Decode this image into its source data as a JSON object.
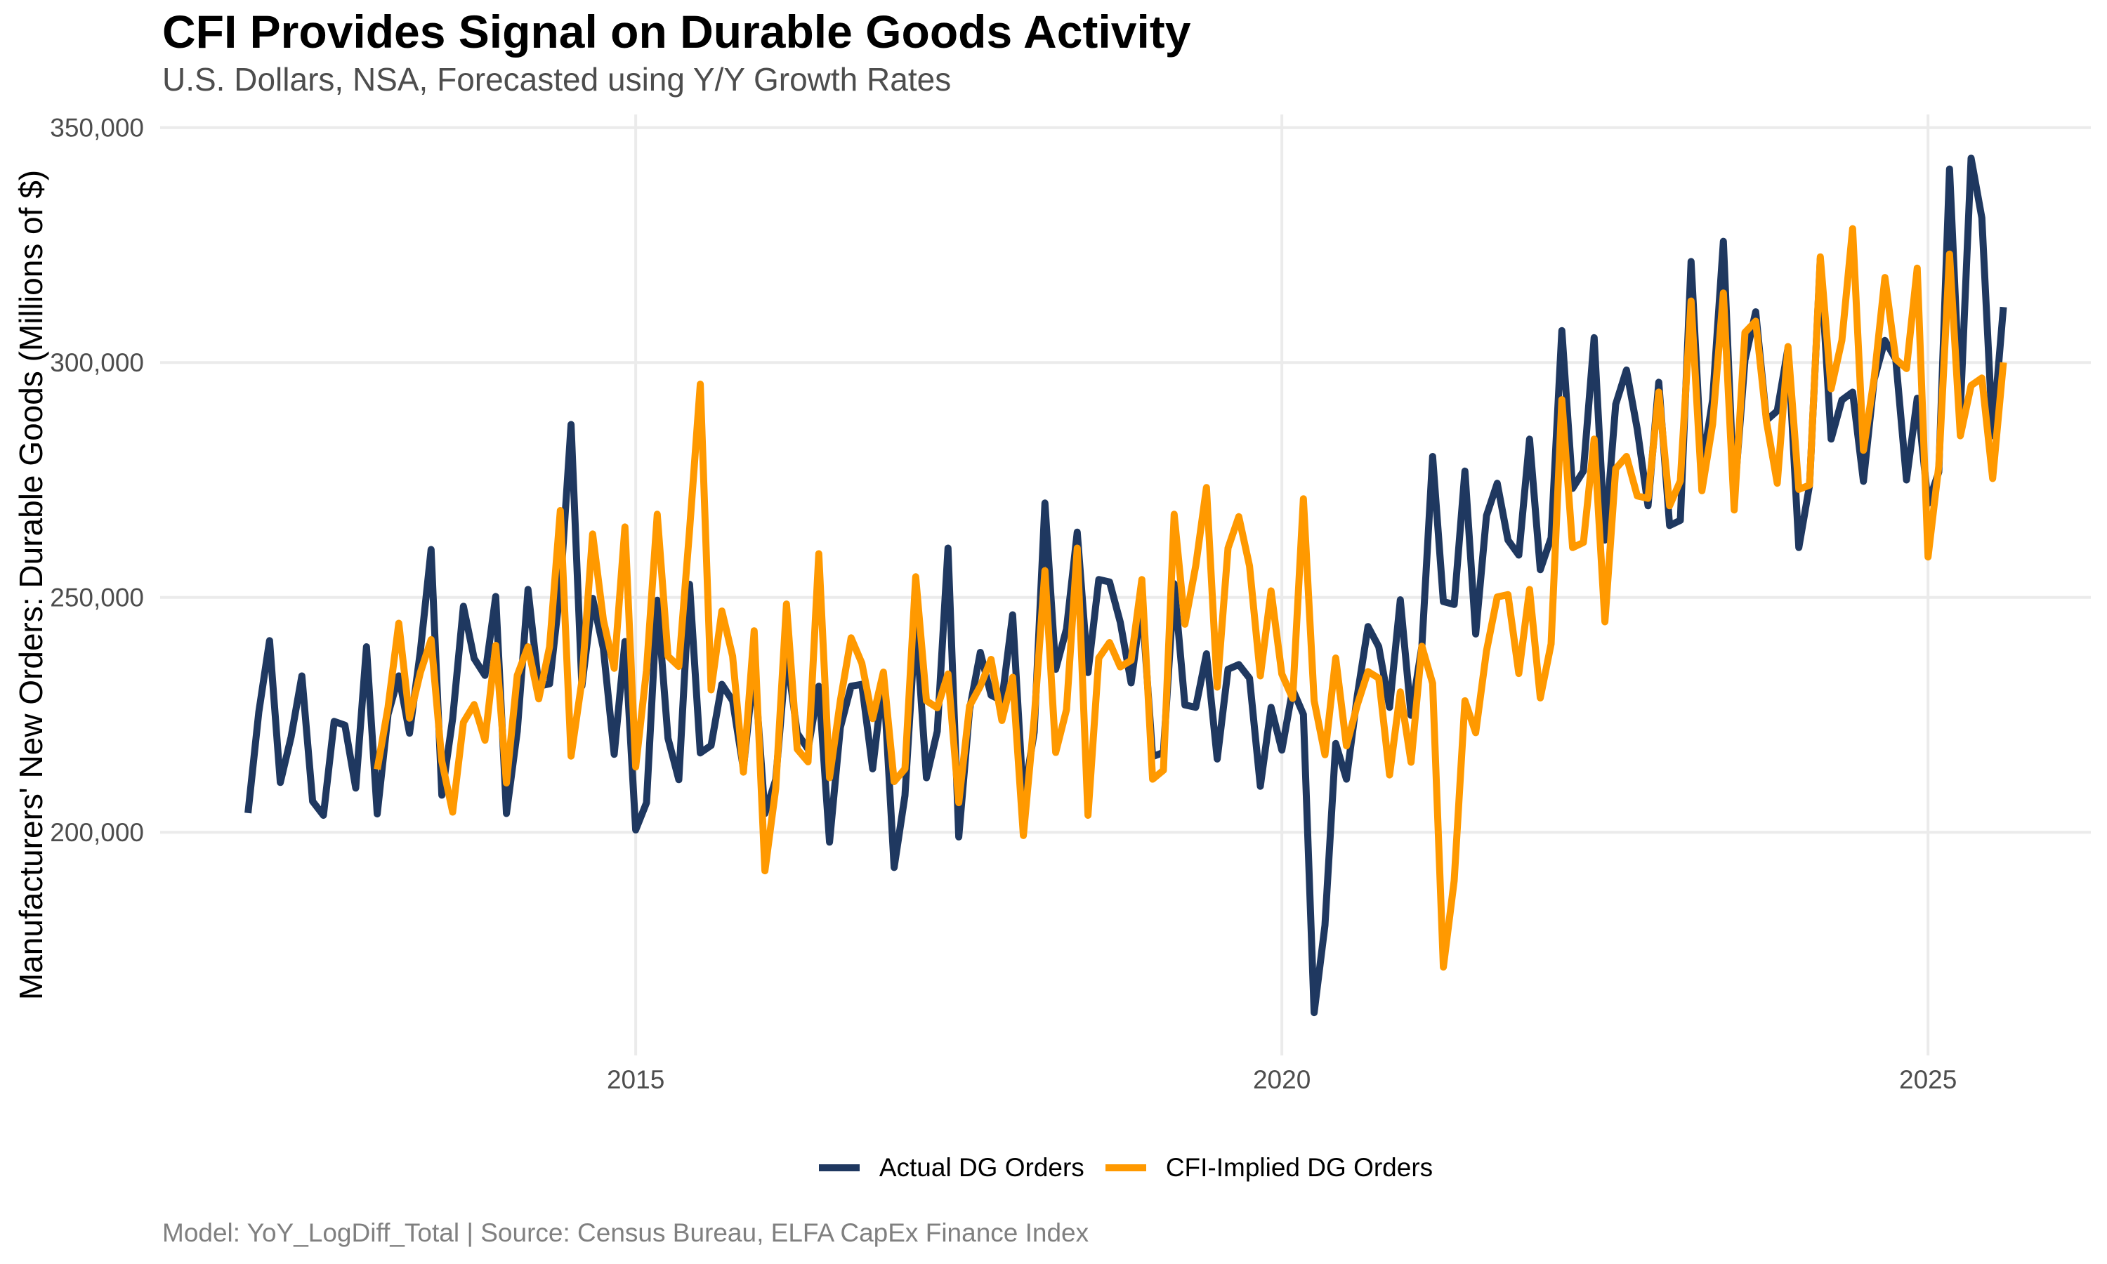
{
  "chart_data": {
    "type": "line",
    "title": "CFI Provides Signal on Durable Goods Activity",
    "subtitle": "U.S. Dollars, NSA, Forecasted using Y/Y Growth Rates",
    "caption": "Model: YoY_LogDiff_Total | Source: Census Bureau, ELFA CapEx Finance Index",
    "xlabel": "",
    "ylabel": "Manufacturers' New Orders: Durable Goods (Millions of $)",
    "x_frequency": "monthly",
    "xlim": [
      2011.32,
      2026.26
    ],
    "ylim": [
      152500,
      352800
    ],
    "x_ticks": [
      2015,
      2020,
      2025
    ],
    "x_tick_labels": [
      "2015",
      "2020",
      "2025"
    ],
    "y_ticks": [
      200000,
      250000,
      300000,
      350000
    ],
    "y_tick_labels": [
      "200,000",
      "250,000",
      "300,000",
      "350,000"
    ],
    "grid": true,
    "legend_position": "bottom",
    "series": [
      {
        "name": "Actual DG Orders",
        "color": "#1f3860",
        "start": "2012-01",
        "values": [
          204100,
          225600,
          240800,
          210600,
          220300,
          233300,
          206600,
          203600,
          223600,
          222800,
          209400,
          239500,
          203900,
          225100,
          233300,
          221100,
          238500,
          260200,
          207900,
          224200,
          248100,
          237000,
          233400,
          250200,
          204000,
          221500,
          251700,
          231100,
          231600,
          252000,
          286800,
          231100,
          249800,
          239100,
          216600,
          240600,
          200500,
          206300,
          249400,
          220000,
          211200,
          252800,
          216900,
          218500,
          231500,
          228000,
          213500,
          235600,
          204000,
          211200,
          238300,
          221100,
          217700,
          231100,
          197900,
          222300,
          231100,
          231500,
          213500,
          233000,
          192500,
          207800,
          245200,
          211600,
          221500,
          260500,
          199000,
          226100,
          238300,
          229200,
          228000,
          246300,
          207000,
          221300,
          270100,
          234700,
          243300,
          263900,
          234000,
          253800,
          253300,
          244700,
          231800,
          249000,
          216100,
          217000,
          252900,
          227100,
          226600,
          238000,
          215600,
          234700,
          235700,
          232800,
          209800,
          226600,
          217500,
          230400,
          225100,
          161600,
          180200,
          218900,
          211300,
          229000,
          243800,
          239500,
          226600,
          249500,
          224900,
          239600,
          280000,
          249100,
          248500,
          276900,
          242200,
          267400,
          274300,
          262200,
          259000,
          283700,
          255900,
          262700,
          306800,
          273200,
          276900,
          305300,
          262200,
          291100,
          298400,
          285800,
          269500,
          295800,
          265300,
          266400,
          321500,
          277400,
          292100,
          325800,
          271000,
          300500,
          310800,
          287700,
          289700,
          303100,
          260600,
          273900,
          322100,
          283700,
          292000,
          293700,
          274700,
          296400,
          304700,
          300700,
          275000,
          292400,
          270000,
          276700,
          341200,
          290000,
          343500,
          330800,
          284400,
          311800
        ]
      },
      {
        "name": "CFI-Implied DG Orders",
        "color": "#ff9900",
        "start": "2013-01",
        "values": [
          213400,
          226600,
          244500,
          224300,
          234000,
          241000,
          215100,
          204300,
          223400,
          227200,
          219600,
          239800,
          210500,
          233400,
          239500,
          228400,
          239500,
          268500,
          216200,
          232200,
          263500,
          245200,
          234900,
          265000,
          213900,
          234500,
          267700,
          237500,
          235300,
          264300,
          295400,
          230300,
          247100,
          237500,
          212800,
          242900,
          191800,
          209300,
          248600,
          217700,
          215000,
          259300,
          211600,
          228000,
          241400,
          236000,
          224200,
          234100,
          210800,
          213500,
          254400,
          228000,
          226500,
          233700,
          206300,
          226900,
          231100,
          236800,
          223800,
          233000,
          199300,
          224200,
          255700,
          217000,
          226100,
          260500,
          203600,
          237100,
          240400,
          235200,
          236600,
          253800,
          211300,
          213200,
          267700,
          244300,
          256700,
          273400,
          230900,
          260500,
          267200,
          256700,
          233300,
          251400,
          233700,
          228500,
          271000,
          228000,
          216500,
          237100,
          218400,
          227100,
          234200,
          232800,
          212200,
          229900,
          214900,
          239600,
          231700,
          171300,
          189700,
          228000,
          221200,
          238600,
          250100,
          250600,
          233800,
          251700,
          228600,
          240100,
          292100,
          260600,
          261700,
          283700,
          244800,
          277400,
          280000,
          271600,
          271100,
          293700,
          269500,
          274800,
          313100,
          272700,
          286900,
          314800,
          268600,
          306400,
          308800,
          287400,
          274300,
          303400,
          273000,
          273900,
          322500,
          294400,
          304700,
          328500,
          281300,
          296700,
          318100,
          300700,
          298700,
          320100,
          258600,
          278000,
          323100,
          284400,
          295100,
          296700,
          275300,
          300000
        ]
      }
    ]
  }
}
